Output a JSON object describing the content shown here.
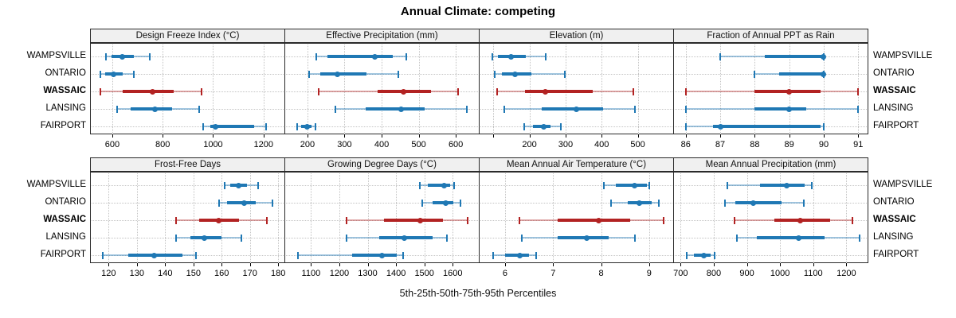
{
  "title": "Annual Climate: competing",
  "footer": "5th-25th-50th-75th-95th Percentiles",
  "colors": {
    "series": "#1F78B4",
    "series_light": "rgba(31,120,180,0.42)",
    "highlight": "#B22222",
    "highlight_light": "rgba(178,34,34,0.40)",
    "strip_bg": "#F0F0F0",
    "grid": "#C3C3C3",
    "panel_border": "#2A2A2A"
  },
  "chart_data": {
    "type": "dotplot-percentile-intervals",
    "layout_hint": "2 rows x 4 columns trellis, free x-scales, grid dotted, row labels on left and right",
    "percentiles": [
      5,
      25,
      50,
      75,
      95
    ],
    "locations": [
      "WAMPSVILLE",
      "ONTARIO",
      "WASSAIC",
      "LANSING",
      "FAIRPORT"
    ],
    "highlight": "WASSAIC",
    "panels": [
      {
        "title": "Design Freeze Index (°C)",
        "range": [
          515,
          1283
        ],
        "ticks": [
          600,
          800,
          1000,
          1200
        ],
        "tick_labels": [
          "600",
          "800",
          "1000",
          "1200"
        ],
        "values": [
          [
            575,
            598,
            640,
            686,
            750
          ],
          [
            552,
            572,
            606,
            640,
            686
          ],
          [
            553,
            640,
            760,
            845,
            955
          ],
          [
            620,
            674,
            768,
            836,
            945
          ],
          [
            960,
            988,
            1010,
            1162,
            1210
          ]
        ]
      },
      {
        "title": "Effective Precipitation (mm)",
        "range": [
          140,
          662
        ],
        "ticks": [
          200,
          300,
          400,
          500,
          600
        ],
        "tick_labels": [
          "200",
          "300",
          "400",
          "500",
          "600"
        ],
        "values": [
          [
            224,
            254,
            382,
            430,
            466
          ],
          [
            204,
            234,
            280,
            360,
            446
          ],
          [
            230,
            390,
            458,
            534,
            606
          ],
          [
            276,
            356,
            452,
            516,
            630
          ],
          [
            172,
            184,
            198,
            210,
            222
          ]
        ]
      },
      {
        "title": "Elevation (m)",
        "range": [
          62,
          598
        ],
        "ticks": [
          100,
          200,
          300,
          400,
          500
        ],
        "tick_labels": [
          "",
          "200",
          "300",
          "400",
          "500"
        ],
        "values": [
          [
            98,
            112,
            150,
            190,
            245
          ],
          [
            104,
            124,
            160,
            205,
            298
          ],
          [
            110,
            188,
            245,
            375,
            488
          ],
          [
            130,
            235,
            330,
            405,
            492
          ],
          [
            185,
            210,
            240,
            258,
            288
          ]
        ]
      },
      {
        "title": "Fraction of Annual PPT as Rain",
        "range": [
          85.66,
          91.27
        ],
        "ticks": [
          86,
          87,
          88,
          89,
          90,
          91
        ],
        "tick_labels": [
          "86",
          "87",
          "88",
          "89",
          "90",
          "91"
        ],
        "values": [
          [
            87,
            88.3,
            90,
            90,
            90
          ],
          [
            88,
            88.7,
            90,
            90,
            90
          ],
          [
            86,
            88,
            89,
            89.9,
            91
          ],
          [
            86,
            88,
            89,
            89.5,
            91
          ],
          [
            86,
            86.8,
            87,
            89.9,
            90
          ]
        ]
      },
      {
        "title": "Frost-Free Days",
        "range": [
          113.7,
          182.2
        ],
        "ticks": [
          120,
          130,
          140,
          150,
          160,
          170,
          180
        ],
        "tick_labels": [
          "120",
          "130",
          "140",
          "150",
          "160",
          "170",
          "180"
        ],
        "values": [
          [
            161,
            163,
            166,
            169,
            173
          ],
          [
            159,
            162,
            168,
            172,
            178
          ],
          [
            144,
            152,
            159,
            166,
            176
          ],
          [
            144,
            149,
            154,
            160,
            167
          ],
          [
            118,
            127,
            136,
            146,
            151
          ]
        ]
      },
      {
        "title": "Growing Degree Days (°C)",
        "range": [
          1009,
          1692
        ],
        "ticks": [
          1100,
          1200,
          1300,
          1400,
          1500,
          1600
        ],
        "tick_labels": [
          "1100",
          "1200",
          "1300",
          "1400",
          "1500",
          "1600"
        ],
        "values": [
          [
            1485,
            1512,
            1570,
            1592,
            1606
          ],
          [
            1492,
            1530,
            1575,
            1602,
            1626
          ],
          [
            1226,
            1358,
            1485,
            1566,
            1652
          ],
          [
            1226,
            1340,
            1430,
            1530,
            1580
          ],
          [
            1055,
            1245,
            1350,
            1402,
            1424
          ]
        ]
      },
      {
        "title": "Mean Annual Air Temperature (°C)",
        "range": [
          5.47,
          9.5
        ],
        "ticks": [
          6,
          7,
          8,
          9
        ],
        "tick_labels": [
          "6",
          "7",
          "8",
          "9"
        ],
        "values": [
          [
            8.05,
            8.3,
            8.7,
            8.95,
            9.0
          ],
          [
            8.2,
            8.55,
            8.8,
            9.05,
            9.2
          ],
          [
            6.3,
            7.1,
            7.95,
            8.6,
            9.3
          ],
          [
            6.35,
            7.1,
            7.7,
            8.15,
            8.7
          ],
          [
            5.75,
            6.0,
            6.3,
            6.5,
            6.65
          ]
        ]
      },
      {
        "title": "Mean Annual Precipitation (mm)",
        "range": [
          680,
          1264
        ],
        "ticks": [
          700,
          800,
          900,
          1000,
          1100,
          1200
        ],
        "tick_labels": [
          "700",
          "800",
          "900",
          "1000",
          "1100",
          "1200"
        ],
        "values": [
          [
            840,
            940,
            1020,
            1075,
            1095
          ],
          [
            835,
            865,
            920,
            1005,
            1072
          ],
          [
            862,
            982,
            1062,
            1150,
            1218
          ],
          [
            870,
            930,
            1055,
            1135,
            1240
          ],
          [
            718,
            740,
            770,
            790,
            802
          ]
        ]
      }
    ]
  }
}
